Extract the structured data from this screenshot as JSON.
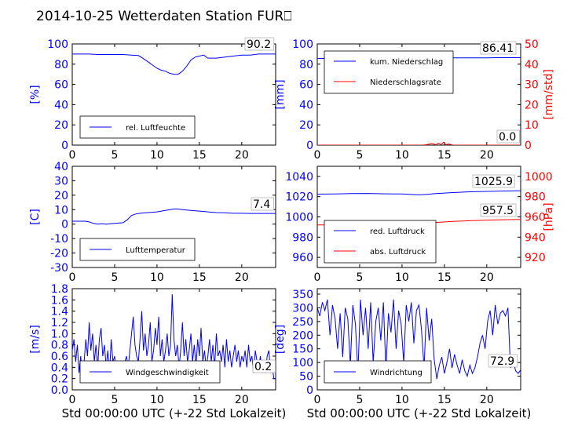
{
  "title": "2014-10-25 Wetterdaten Station FUR⎕",
  "colors": {
    "blue": "#0000ff",
    "red": "#ff0000",
    "black": "#000000"
  },
  "chart_data": [
    {
      "id": "humidity",
      "type": "line",
      "xlim": [
        0,
        24
      ],
      "ylim": [
        0,
        100
      ],
      "xticks": [
        0,
        5,
        10,
        15,
        20
      ],
      "yticks": [
        0,
        20,
        40,
        60,
        80,
        100
      ],
      "ylabel": "[%]",
      "legend_position": "lower-left",
      "last_value": "90.2",
      "series": [
        {
          "name": "rel. Luftfeuchte",
          "color": "blue",
          "x": [
            0,
            1,
            2,
            3,
            4,
            5,
            6,
            7,
            7.8,
            8.3,
            9,
            9.5,
            10,
            10.5,
            11,
            11.5,
            12,
            12.5,
            13,
            13.5,
            14,
            14.5,
            15,
            15.5,
            16,
            17,
            18,
            19,
            20,
            21,
            22,
            23,
            24
          ],
          "y": [
            90,
            90,
            90,
            89.5,
            89.5,
            89.5,
            89.5,
            89,
            88.5,
            86,
            82,
            79,
            76,
            74,
            73,
            71,
            70,
            70,
            73,
            78,
            84,
            87,
            88,
            89,
            86,
            86,
            87,
            88,
            89,
            89,
            90,
            90,
            90
          ]
        }
      ]
    },
    {
      "id": "precipitation",
      "type": "line",
      "xlim": [
        0,
        24
      ],
      "ylim": [
        0,
        100
      ],
      "y2lim": [
        0,
        50
      ],
      "xticks": [
        0,
        5,
        10,
        15,
        20
      ],
      "yticks": [
        0,
        20,
        40,
        60,
        80,
        100
      ],
      "y2ticks": [
        0,
        10,
        20,
        30,
        40,
        50
      ],
      "ylabel": "[mm]",
      "y2label": "[mm/std]",
      "legend_position": "upper-left",
      "last_value": "86.41",
      "last_value_2": "0.0",
      "series": [
        {
          "name": "kum. Niederschlag",
          "color": "blue",
          "axis": "left",
          "x": [
            0,
            2,
            4,
            6,
            8,
            10,
            12,
            14,
            16,
            18,
            20,
            22,
            24
          ],
          "y": [
            85.6,
            85.7,
            85.8,
            85.8,
            85.9,
            85.9,
            86,
            86.1,
            86.2,
            86.3,
            86.3,
            86.4,
            86.41
          ]
        },
        {
          "name": "Niederschlagsrate",
          "color": "red",
          "axis": "right",
          "x": [
            0,
            12.5,
            13,
            13.5,
            14,
            14.3,
            14.6,
            14.9,
            15.2,
            15.5,
            16,
            24
          ],
          "y": [
            0,
            0,
            0.3,
            0.8,
            0.2,
            1,
            0.3,
            1.4,
            0.2,
            0.6,
            0,
            0
          ]
        }
      ]
    },
    {
      "id": "temperature",
      "type": "line",
      "xlim": [
        0,
        24
      ],
      "ylim": [
        -30,
        40
      ],
      "xticks": [
        0,
        5,
        10,
        15,
        20
      ],
      "yticks": [
        -30,
        -20,
        -10,
        0,
        10,
        20,
        30,
        40
      ],
      "ylabel": "[C]",
      "legend_position": "lower-left",
      "last_value": "7.4",
      "series": [
        {
          "name": "Lufttemperatur",
          "color": "blue",
          "x": [
            0,
            1,
            1.5,
            2,
            2.5,
            3,
            3.5,
            4,
            5,
            6,
            6.5,
            7,
            7.5,
            8,
            9,
            10,
            11,
            12,
            12.5,
            13,
            14,
            15,
            16,
            17,
            18,
            19,
            20,
            21,
            22,
            23,
            24
          ],
          "y": [
            2,
            2,
            2,
            1.5,
            0.5,
            0,
            0.2,
            0,
            0.5,
            1,
            3,
            6,
            7,
            7.5,
            8,
            8.5,
            9.5,
            10.5,
            10.5,
            10,
            9.5,
            9,
            8.5,
            8,
            7.8,
            7.5,
            7.5,
            7.4,
            7.4,
            7.4,
            7.4
          ]
        }
      ]
    },
    {
      "id": "pressure",
      "type": "line",
      "xlim": [
        0,
        24
      ],
      "ylim": [
        950,
        1050
      ],
      "y2lim": [
        910,
        1010
      ],
      "xticks": [
        0,
        5,
        10,
        15,
        20
      ],
      "yticks": [
        960,
        980,
        1000,
        1020,
        1040
      ],
      "y2ticks": [
        920,
        940,
        960,
        980,
        1000
      ],
      "y2label": "[hPa]",
      "legend_position": "lower-left",
      "last_value": "1025.9",
      "last_value_2": "957.5",
      "series": [
        {
          "name": "red. Luftdruck",
          "color": "blue",
          "axis": "left",
          "x": [
            0,
            2,
            4,
            6,
            8,
            10,
            12,
            13,
            14,
            16,
            18,
            20,
            22,
            24
          ],
          "y": [
            1022.5,
            1022.7,
            1023,
            1023.2,
            1022.8,
            1022.6,
            1021.8,
            1022.3,
            1023,
            1024,
            1024.8,
            1025.2,
            1025.6,
            1025.9
          ]
        },
        {
          "name": "abs. Luftdruck",
          "color": "red",
          "axis": "right",
          "x": [
            0,
            2,
            4,
            6,
            8,
            10,
            12,
            14,
            16,
            18,
            20,
            22,
            24
          ],
          "y": [
            952,
            952,
            952.5,
            953,
            953,
            953.3,
            953.6,
            954.5,
            955.5,
            956.2,
            956.8,
            957.2,
            957.5
          ]
        }
      ]
    },
    {
      "id": "windspeed",
      "type": "line",
      "xlim": [
        0,
        24
      ],
      "ylim": [
        0,
        1.8
      ],
      "xticks": [
        0,
        5,
        10,
        15,
        20
      ],
      "yticks": [
        0.0,
        0.2,
        0.4,
        0.6,
        0.8,
        1.0,
        1.2,
        1.4,
        1.6,
        1.8
      ],
      "ylabel": "[m/s]",
      "xlabel": "Std 00:00:00 UTC (+-22 Std Lokalzeit)",
      "legend_position": "lower-left",
      "last_value": "0.2",
      "series": [
        {
          "name": "Windgeschwindigkeit",
          "color": "blue",
          "x": [
            0,
            0.2,
            0.4,
            0.6,
            0.8,
            1,
            1.2,
            1.4,
            1.6,
            1.8,
            2,
            2.2,
            2.4,
            2.6,
            2.8,
            3,
            3.2,
            3.4,
            3.6,
            3.8,
            4,
            4.2,
            4.4,
            4.6,
            4.8,
            5,
            5.2,
            5.4,
            5.6,
            5.8,
            6,
            6.2,
            6.4,
            6.6,
            6.8,
            7,
            7.2,
            7.4,
            7.6,
            7.8,
            8,
            8.2,
            8.4,
            8.6,
            8.8,
            9,
            9.2,
            9.4,
            9.6,
            9.8,
            10,
            10.2,
            10.4,
            10.6,
            10.8,
            11,
            11.2,
            11.4,
            11.6,
            11.8,
            12,
            12.2,
            12.4,
            12.6,
            12.8,
            13,
            13.2,
            13.4,
            13.6,
            13.8,
            14,
            14.2,
            14.4,
            14.6,
            14.8,
            15,
            15.2,
            15.4,
            15.6,
            15.8,
            16,
            16.2,
            16.4,
            16.6,
            16.8,
            17,
            17.2,
            17.4,
            17.6,
            17.8,
            18,
            18.2,
            18.4,
            18.6,
            18.8,
            19,
            19.2,
            19.4,
            19.6,
            19.8,
            20,
            20.2,
            20.4,
            20.6,
            20.8,
            21,
            21.2,
            21.4,
            21.6,
            21.8,
            22,
            22.2,
            22.4,
            22.6,
            22.8,
            23,
            23.2,
            23.4,
            23.6,
            23.8,
            24
          ],
          "y": [
            0.7,
            0.9,
            0.5,
            0.8,
            0.3,
            0.6,
            0.2,
            0.5,
            0.9,
            0.6,
            1.2,
            0.7,
            1.0,
            0.5,
            0.8,
            0.4,
            0.9,
            1.1,
            0.6,
            0.8,
            0.4,
            0.7,
            0.3,
            0.9,
            0.5,
            0.6,
            0.3,
            0.5,
            0.2,
            0.4,
            0.3,
            0.5,
            0.6,
            0.4,
            0.7,
            1.0,
            1.3,
            0.8,
            0.6,
            0.5,
            0.9,
            1.4,
            0.7,
            1.0,
            0.6,
            0.8,
            1.2,
            0.5,
            0.7,
            1.1,
            0.8,
            1.3,
            0.6,
            0.9,
            0.5,
            0.7,
            1.0,
            0.6,
            0.8,
            1.7,
            0.9,
            0.6,
            0.8,
            0.4,
            0.7,
            1.2,
            0.6,
            0.9,
            0.5,
            0.7,
            1.0,
            0.5,
            0.8,
            0.4,
            0.9,
            0.6,
            1.1,
            0.5,
            0.7,
            0.4,
            0.6,
            0.9,
            0.5,
            0.8,
            0.4,
            1.0,
            0.6,
            0.7,
            0.5,
            0.8,
            0.4,
            0.9,
            0.5,
            0.7,
            0.4,
            0.6,
            0.8,
            0.5,
            0.7,
            0.4,
            0.6,
            0.5,
            0.7,
            0.4,
            0.8,
            0.5,
            0.6,
            0.3,
            0.7,
            0.5,
            0.4,
            0.6,
            0.3,
            0.5,
            0.3,
            0.6,
            0.7,
            0.3,
            0.4,
            0.2,
            0.2
          ]
        }
      ]
    },
    {
      "id": "winddirection",
      "type": "line",
      "xlim": [
        0,
        24
      ],
      "ylim": [
        0,
        370
      ],
      "xticks": [
        0,
        5,
        10,
        15,
        20
      ],
      "yticks": [
        0,
        50,
        100,
        150,
        200,
        250,
        300,
        350
      ],
      "ylabel": "[deg]",
      "xlabel": "Std 00:00:00 UTC (+-22 Std Lokalzeit)",
      "legend_position": "lower-left",
      "last_value": "72.9",
      "series": [
        {
          "name": "Windrichtung",
          "color": "blue",
          "x": [
            0,
            0.3,
            0.6,
            0.9,
            1.2,
            1.5,
            1.8,
            2.1,
            2.4,
            2.7,
            3,
            3.3,
            3.6,
            3.9,
            4.2,
            4.5,
            4.8,
            5.1,
            5.4,
            5.7,
            6,
            6.3,
            6.6,
            6.9,
            7.2,
            7.5,
            7.8,
            8.1,
            8.4,
            8.7,
            9,
            9.3,
            9.6,
            9.9,
            10.2,
            10.5,
            10.8,
            11.1,
            11.4,
            11.7,
            12,
            12.3,
            12.6,
            12.9,
            13.2,
            13.5,
            13.8,
            14.1,
            14.4,
            14.7,
            15,
            15.3,
            15.6,
            15.9,
            16.2,
            16.5,
            16.8,
            17.1,
            17.4,
            17.7,
            18,
            18.3,
            18.6,
            18.9,
            19.2,
            19.5,
            19.8,
            20.1,
            20.4,
            20.7,
            21,
            21.3,
            21.6,
            21.9,
            22.2,
            22.5,
            22.8,
            23.1,
            23.4,
            23.7,
            24
          ],
          "y": [
            300,
            270,
            320,
            290,
            330,
            200,
            310,
            260,
            150,
            280,
            120,
            300,
            260,
            90,
            310,
            240,
            60,
            330,
            200,
            300,
            150,
            320,
            100,
            250,
            300,
            180,
            320,
            70,
            280,
            210,
            330,
            150,
            290,
            240,
            100,
            310,
            250,
            320,
            170,
            290,
            310,
            220,
            80,
            300,
            180,
            260,
            110,
            40,
            90,
            120,
            60,
            100,
            150,
            80,
            130,
            90,
            60,
            110,
            70,
            50,
            90,
            60,
            80,
            120,
            170,
            200,
            150,
            250,
            290,
            200,
            310,
            240,
            280,
            290,
            270,
            300,
            80,
            110,
            70,
            60,
            72.9
          ]
        }
      ]
    },
    {
      "id": "windspeed-bg",
      "type": "line",
      "xlim": [
        0,
        24
      ],
      "ylim": [
        0,
        1.8
      ],
      "series": [
        {
          "color": "blue",
          "x": [
            1,
            1.3,
            1.6,
            1.9,
            2.2,
            2.5,
            2.8,
            3.1,
            3.4,
            3.7,
            4,
            4.3,
            4.6,
            4.9,
            5.2,
            5.5,
            5.8,
            6.1,
            6.4,
            6.7,
            7,
            7.3,
            7.6,
            7.9,
            8.2,
            8.5,
            8.8,
            9.1,
            9.4,
            9.7,
            10,
            10.3,
            10.6,
            10.9,
            11.2,
            11.5,
            11.8,
            12.1,
            12.4,
            12.7,
            13,
            13.3,
            13.6,
            13.9,
            14.2,
            14.5,
            14.8,
            15.1,
            15.4,
            15.7,
            16,
            16.3,
            16.6,
            16.9,
            17.2
          ],
          "y": [
            0.35,
            0.2,
            0.45,
            0.25,
            0.4,
            0.15,
            0.35,
            0.28,
            0.42,
            0.18,
            0.38,
            0.22,
            0.45,
            0.3,
            0.2,
            0.4,
            0.25,
            0.38,
            0.2,
            0.44,
            0.3,
            0.22,
            0.36,
            0.18,
            0.42,
            0.28,
            0.35,
            0.2,
            0.4,
            0.26,
            0.38,
            0.2,
            0.45,
            0.3,
            0.24,
            0.4,
            0.18,
            0.36,
            0.28,
            0.42,
            0.22,
            0.38,
            0.2,
            0.44,
            0.3,
            0.26,
            0.4,
            0.2,
            0.36,
            0.24,
            0.42,
            0.3,
            0.2,
            0.38,
            0.25
          ]
        }
      ]
    }
  ]
}
